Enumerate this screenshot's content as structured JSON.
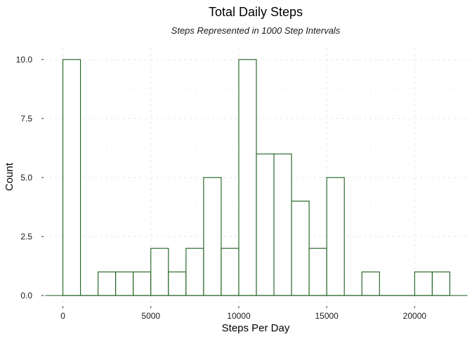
{
  "chart_data": {
    "type": "bar",
    "title": "Total Daily Steps",
    "subtitle": "Steps Represented in 1000 Step Intervals",
    "xlabel": "Steps Per Day",
    "ylabel": "Count",
    "bin_width": 1000,
    "x_ticks": [
      0,
      5000,
      10000,
      15000,
      20000
    ],
    "x_tick_labels": [
      "0",
      "5000",
      "10000",
      "15000",
      "20000"
    ],
    "y_ticks": [
      0,
      2.5,
      5,
      7.5,
      10
    ],
    "y_tick_labels": [
      "0.0",
      "2.5",
      "5.0",
      "7.5",
      "10.0"
    ],
    "xlim": [
      -1100,
      23100
    ],
    "ylim": [
      -0.45,
      10.5
    ],
    "grid": true,
    "bar_fill": "#ffffff",
    "bar_outline": "#1a5e1a",
    "bins": [
      {
        "start": 0,
        "end": 1000,
        "count": 10
      },
      {
        "start": 1000,
        "end": 2000,
        "count": 0
      },
      {
        "start": 2000,
        "end": 3000,
        "count": 1
      },
      {
        "start": 3000,
        "end": 4000,
        "count": 1
      },
      {
        "start": 4000,
        "end": 5000,
        "count": 1
      },
      {
        "start": 5000,
        "end": 6000,
        "count": 2
      },
      {
        "start": 6000,
        "end": 7000,
        "count": 1
      },
      {
        "start": 7000,
        "end": 8000,
        "count": 2
      },
      {
        "start": 8000,
        "end": 9000,
        "count": 5
      },
      {
        "start": 9000,
        "end": 10000,
        "count": 2
      },
      {
        "start": 10000,
        "end": 11000,
        "count": 10
      },
      {
        "start": 11000,
        "end": 12000,
        "count": 6
      },
      {
        "start": 12000,
        "end": 13000,
        "count": 6
      },
      {
        "start": 13000,
        "end": 14000,
        "count": 4
      },
      {
        "start": 14000,
        "end": 15000,
        "count": 2
      },
      {
        "start": 15000,
        "end": 16000,
        "count": 5
      },
      {
        "start": 16000,
        "end": 17000,
        "count": 0
      },
      {
        "start": 17000,
        "end": 18000,
        "count": 1
      },
      {
        "start": 18000,
        "end": 19000,
        "count": 0
      },
      {
        "start": 19000,
        "end": 20000,
        "count": 0
      },
      {
        "start": 20000,
        "end": 21000,
        "count": 1
      },
      {
        "start": 21000,
        "end": 22000,
        "count": 1
      }
    ]
  }
}
